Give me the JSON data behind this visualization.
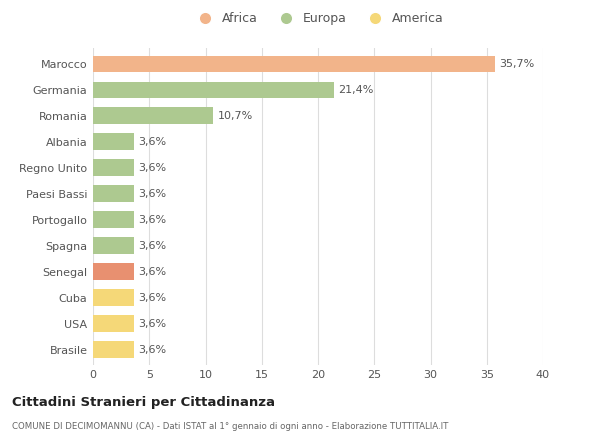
{
  "categories": [
    "Marocco",
    "Germania",
    "Romania",
    "Albania",
    "Regno Unito",
    "Paesi Bassi",
    "Portogallo",
    "Spagna",
    "Senegal",
    "Cuba",
    "USA",
    "Brasile"
  ],
  "values": [
    35.7,
    21.4,
    10.7,
    3.6,
    3.6,
    3.6,
    3.6,
    3.6,
    3.6,
    3.6,
    3.6,
    3.6
  ],
  "labels": [
    "35,7%",
    "21,4%",
    "10,7%",
    "3,6%",
    "3,6%",
    "3,6%",
    "3,6%",
    "3,6%",
    "3,6%",
    "3,6%",
    "3,6%",
    "3,6%"
  ],
  "colors": [
    "#f2b48a",
    "#adc990",
    "#adc990",
    "#adc990",
    "#adc990",
    "#adc990",
    "#adc990",
    "#adc990",
    "#e89070",
    "#f5d878",
    "#f5d878",
    "#f5d878"
  ],
  "legend_labels": [
    "Africa",
    "Europa",
    "America"
  ],
  "legend_colors": [
    "#f2b48a",
    "#adc990",
    "#f5d878"
  ],
  "title": "Cittadini Stranieri per Cittadinanza",
  "subtitle": "COMUNE DI DECIMOMANNU (CA) - Dati ISTAT al 1° gennaio di ogni anno - Elaborazione TUTTITALIA.IT",
  "xlim": [
    0,
    40
  ],
  "xticks": [
    0,
    5,
    10,
    15,
    20,
    25,
    30,
    35,
    40
  ],
  "background_color": "#ffffff",
  "plot_bg_color": "#ffffff",
  "grid_color": "#dddddd",
  "bar_height": 0.65,
  "label_fontsize": 8,
  "ytick_fontsize": 8,
  "xtick_fontsize": 8
}
